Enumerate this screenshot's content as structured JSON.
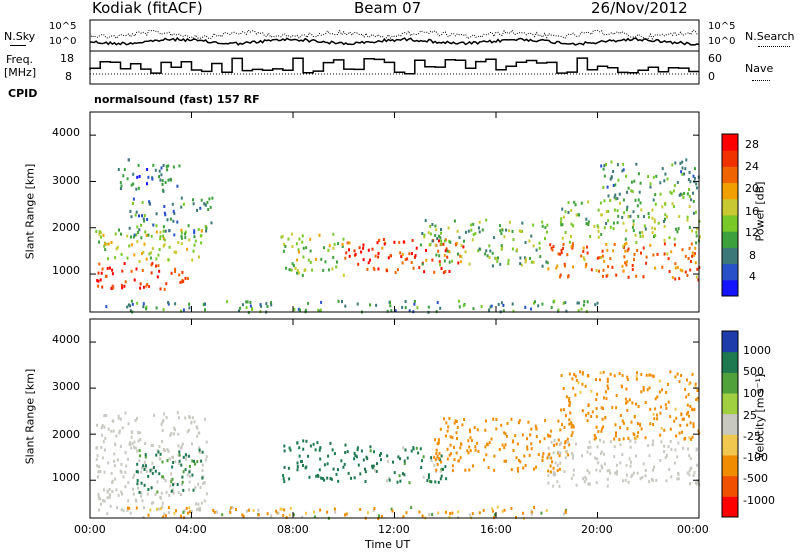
{
  "header": {
    "station": "Kodiak (fitACF)",
    "beam": "Beam 07",
    "date": "26/Nov/2012"
  },
  "noise_panel": {
    "left_label": "N.Sky",
    "right_label": "N.Search",
    "ticks": [
      "10^5",
      "10^0"
    ]
  },
  "freq_panel": {
    "left_label_1": "Freq.",
    "left_label_2": "[MHz]",
    "right_label": "Nave",
    "left_ticks": [
      "18",
      "8"
    ],
    "right_ticks": [
      "60",
      "0"
    ]
  },
  "cpid": {
    "label": "CPID",
    "value": "normalsound (fast) 157 RF"
  },
  "colors": {
    "power": [
      "#1414ff",
      "#2850c8",
      "#3c7878",
      "#3ca03c",
      "#78c828",
      "#c8c832",
      "#f0a000",
      "#f06400",
      "#f03200",
      "#ff0000"
    ],
    "velocity": [
      "#ff0000",
      "#f05000",
      "#f08c00",
      "#f0c850",
      "#c8c8c0",
      "#a0d040",
      "#50a03c",
      "#1e7850",
      "#1e3caa"
    ],
    "ground_scatter": "#c8c8c0"
  },
  "chart_data": [
    {
      "type": "heatmap",
      "name": "power",
      "ylabel": "Slant Range [km]",
      "xlabel": "",
      "xlim": [
        0,
        24
      ],
      "ylim": [
        180,
        4500
      ],
      "yticks": [
        "4000",
        "3000",
        "2000",
        "1000"
      ],
      "colorbar": {
        "label": "Power [dB]",
        "ticks": [
          "28",
          "24",
          "20",
          "16",
          "12",
          "8",
          "4"
        ],
        "range": [
          0,
          30
        ]
      },
      "blobs": [
        {
          "t0": 0.2,
          "t1": 3.9,
          "r0": 700,
          "r1": 1300,
          "p": 26
        },
        {
          "t0": 0.2,
          "t1": 4.5,
          "r0": 1300,
          "r1": 2000,
          "p": 15
        },
        {
          "t0": 1.5,
          "t1": 4.8,
          "r0": 1800,
          "r1": 2700,
          "p": 9
        },
        {
          "t0": 1.0,
          "t1": 3.5,
          "r0": 2800,
          "r1": 3500,
          "p": 7
        },
        {
          "t0": 7.5,
          "t1": 10.0,
          "r0": 1000,
          "r1": 1900,
          "p": 14
        },
        {
          "t0": 10.0,
          "t1": 14.8,
          "r0": 1050,
          "r1": 1800,
          "p": 25
        },
        {
          "t0": 13.0,
          "t1": 18.0,
          "r0": 1200,
          "r1": 2200,
          "p": 12
        },
        {
          "t0": 18.0,
          "t1": 24.0,
          "r0": 900,
          "r1": 1700,
          "p": 22
        },
        {
          "t0": 18.5,
          "t1": 24.0,
          "r0": 1700,
          "r1": 2600,
          "p": 13
        },
        {
          "t0": 20.0,
          "t1": 24.0,
          "r0": 2600,
          "r1": 3500,
          "p": 10
        },
        {
          "t0": 0.5,
          "t1": 20.0,
          "r0": 200,
          "r1": 450,
          "p": 9
        }
      ]
    },
    {
      "type": "heatmap",
      "name": "velocity",
      "ylabel": "Slant Range [km]",
      "xlabel": "Time UT",
      "xlim": [
        0,
        24
      ],
      "ylim": [
        180,
        4500
      ],
      "yticks": [
        "4000",
        "3000",
        "2000",
        "1000"
      ],
      "xticks": [
        "00:00",
        "04:00",
        "08:00",
        "12:00",
        "16:00",
        "20:00",
        "00:00"
      ],
      "colorbar": {
        "label": "Velocity [m s⁻¹]",
        "ticks": [
          "1000",
          "500",
          "100",
          "25",
          "-25",
          "-100",
          "-500",
          "-1000"
        ]
      },
      "blobs": [
        {
          "t0": 0.2,
          "t1": 4.6,
          "r0": 300,
          "r1": 2500,
          "v": 0,
          "gs": true
        },
        {
          "t0": 1.8,
          "t1": 4.4,
          "r0": 750,
          "r1": 1700,
          "v": 200
        },
        {
          "t0": 7.5,
          "t1": 11.0,
          "r0": 1000,
          "r1": 1900,
          "v": 300
        },
        {
          "t0": 11.0,
          "t1": 14.0,
          "r0": 950,
          "r1": 1800,
          "v": 150
        },
        {
          "t0": 13.5,
          "t1": 19.0,
          "r0": 1200,
          "r1": 2400,
          "v": -300
        },
        {
          "t0": 18.0,
          "t1": 24.0,
          "r0": 900,
          "r1": 1900,
          "v": 0,
          "gs": true
        },
        {
          "t0": 18.5,
          "t1": 24.0,
          "r0": 1900,
          "r1": 3400,
          "v": -250
        },
        {
          "t0": 1.0,
          "t1": 19.0,
          "r0": 200,
          "r1": 450,
          "v": -120
        }
      ]
    }
  ]
}
